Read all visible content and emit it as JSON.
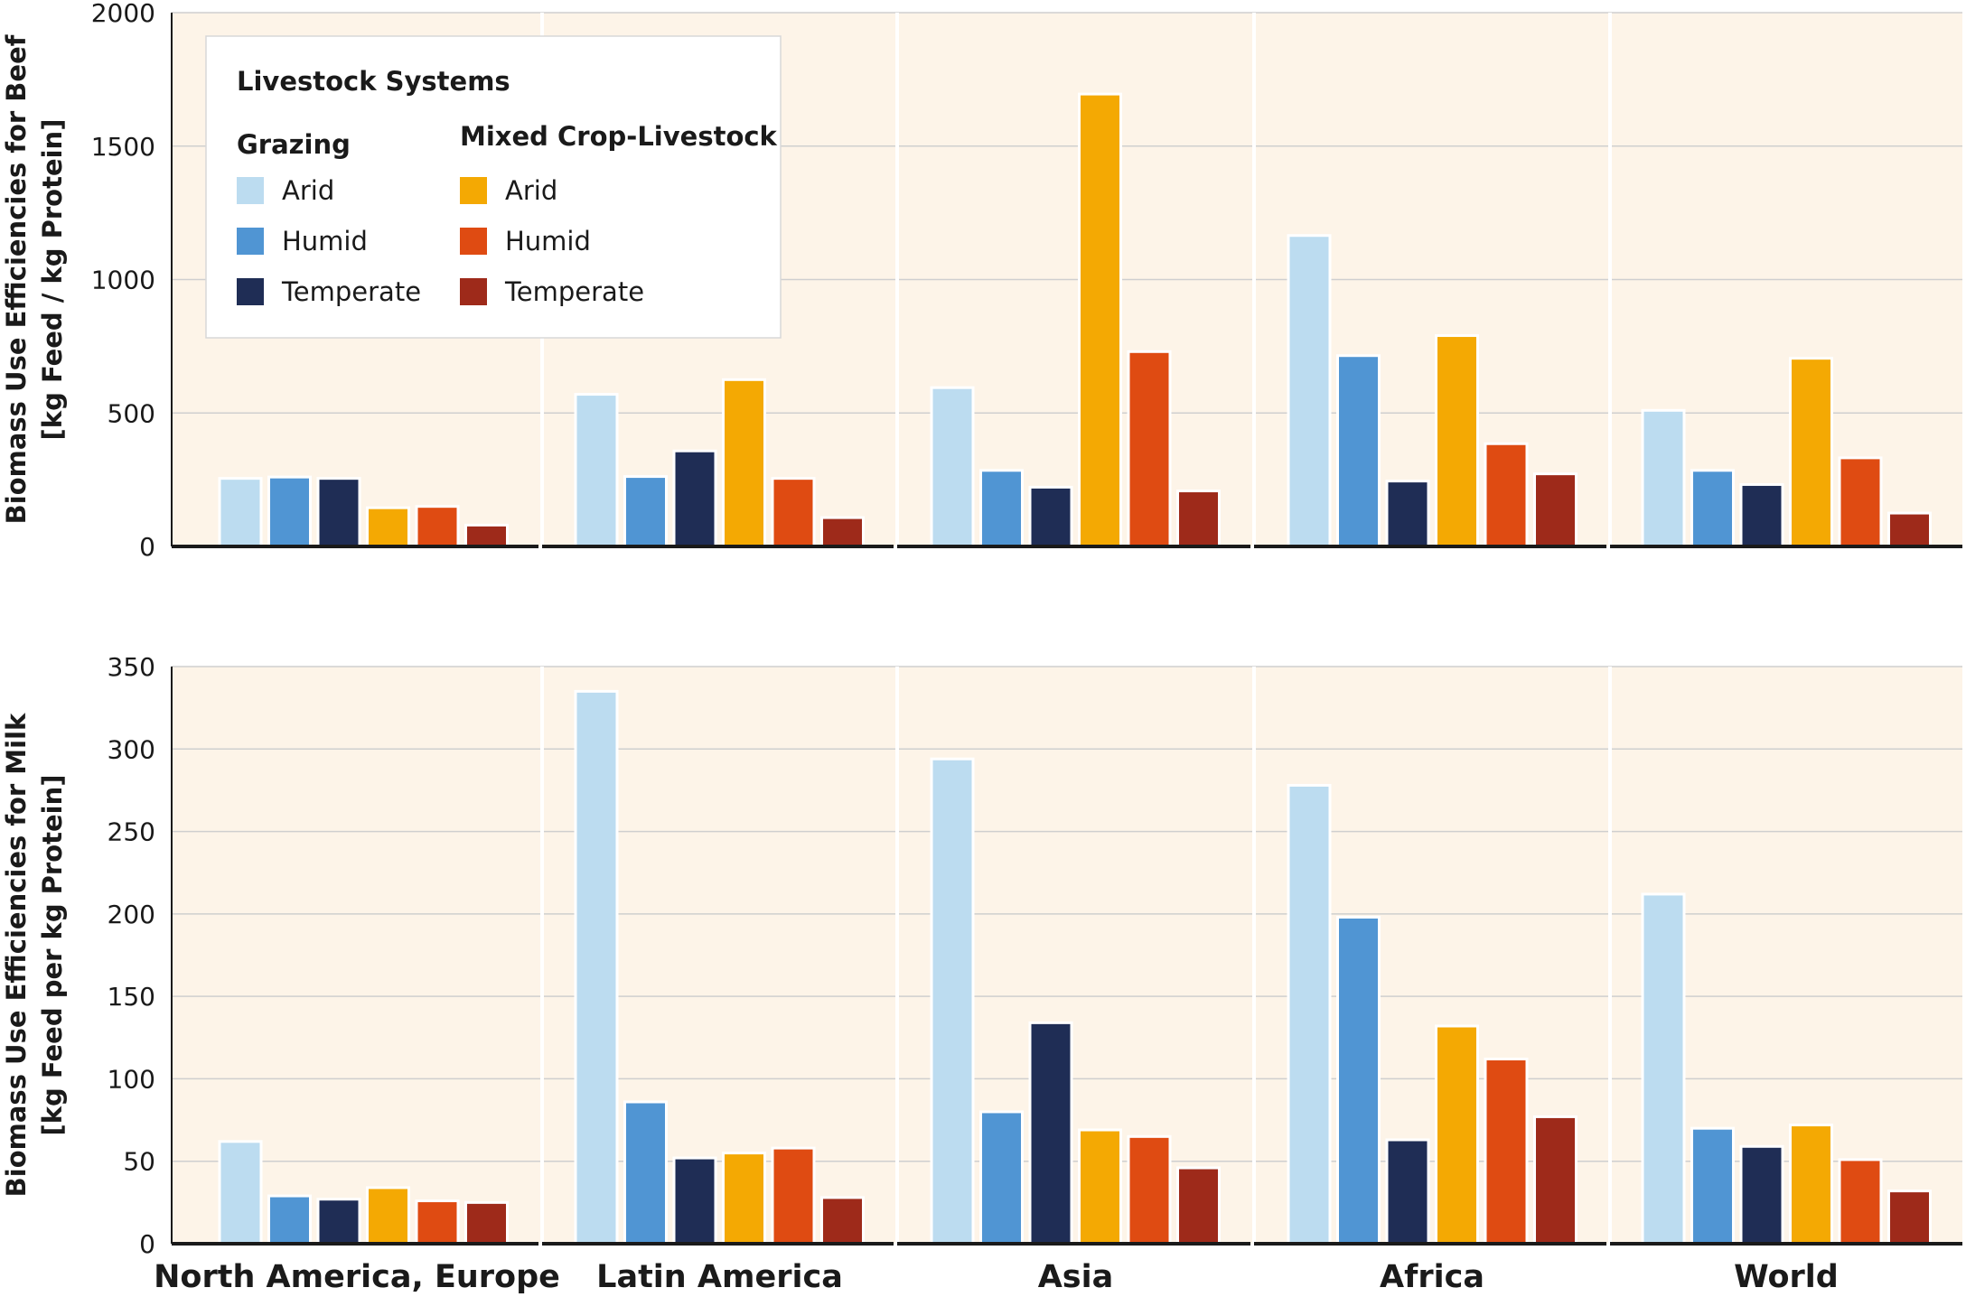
{
  "chart_data": [
    {
      "type": "bar",
      "id": "beef",
      "ylabel_lines": [
        "Biomass Use Efficiencies for Beef",
        "[kg Feed / kg Protein]"
      ],
      "ylim": [
        0,
        2000
      ],
      "yticks": [
        0,
        500,
        1000,
        1500,
        2000
      ],
      "grid": true,
      "categories": [
        "North America, Europe",
        "Latin America",
        "Asia",
        "Africa",
        "World"
      ],
      "series": [
        {
          "name": "Grazing Arid",
          "color": "#bcdcf0",
          "values": [
            255,
            570,
            595,
            1165,
            510
          ]
        },
        {
          "name": "Grazing Humid",
          "color": "#5095d3",
          "values": [
            260,
            262,
            285,
            715,
            285
          ]
        },
        {
          "name": "Grazing Temperate",
          "color": "#1f2d55",
          "values": [
            255,
            358,
            222,
            245,
            232
          ]
        },
        {
          "name": "Mixed Crop-Livestock Arid",
          "color": "#f4a903",
          "values": [
            145,
            625,
            1695,
            790,
            705
          ]
        },
        {
          "name": "Mixed Crop-Livestock Humid",
          "color": "#df4b12",
          "values": [
            150,
            255,
            730,
            385,
            332
          ]
        },
        {
          "name": "Mixed Crop-Livestock Temperate",
          "color": "#9e2a1a",
          "values": [
            80,
            108,
            208,
            272,
            125
          ]
        }
      ]
    },
    {
      "type": "bar",
      "id": "milk",
      "ylabel_lines": [
        "Biomass Use Efficiencies for Milk",
        "[kg Feed per kg Protein]"
      ],
      "ylim": [
        0,
        350
      ],
      "yticks": [
        0,
        50,
        100,
        150,
        200,
        250,
        300,
        350
      ],
      "grid": true,
      "categories": [
        "North America, Europe",
        "Latin America",
        "Asia",
        "Africa",
        "World"
      ],
      "series": [
        {
          "name": "Grazing Arid",
          "color": "#bcdcf0",
          "values": [
            62,
            335,
            294,
            278,
            212
          ]
        },
        {
          "name": "Grazing Humid",
          "color": "#5095d3",
          "values": [
            29,
            86,
            80,
            198,
            70
          ]
        },
        {
          "name": "Grazing Temperate",
          "color": "#1f2d55",
          "values": [
            27,
            52,
            134,
            63,
            59
          ]
        },
        {
          "name": "Mixed Crop-Livestock Arid",
          "color": "#f4a903",
          "values": [
            34,
            55,
            69,
            132,
            72
          ]
        },
        {
          "name": "Mixed Crop-Livestock Humid",
          "color": "#df4b12",
          "values": [
            26,
            58,
            65,
            112,
            51
          ]
        },
        {
          "name": "Mixed Crop-Livestock Temperate",
          "color": "#9e2a1a",
          "values": [
            25,
            28,
            46,
            77,
            32
          ]
        }
      ]
    }
  ],
  "legend": {
    "title": "Livestock Systems",
    "placement": "top-left",
    "groups": [
      {
        "title": "Grazing",
        "items": [
          {
            "label": "Arid",
            "color": "#bcdcf0"
          },
          {
            "label": "Humid",
            "color": "#5095d3"
          },
          {
            "label": "Temperate",
            "color": "#1f2d55"
          }
        ]
      },
      {
        "title": "Mixed Crop-Livestock",
        "items": [
          {
            "label": "Arid",
            "color": "#f4a903"
          },
          {
            "label": "Humid",
            "color": "#df4b12"
          },
          {
            "label": "Temperate",
            "color": "#9e2a1a"
          }
        ]
      }
    ]
  },
  "colors": {
    "panel_background": "#fdf4e8",
    "gridline": "#cfcfcf",
    "axis": "#1a1a1a"
  }
}
